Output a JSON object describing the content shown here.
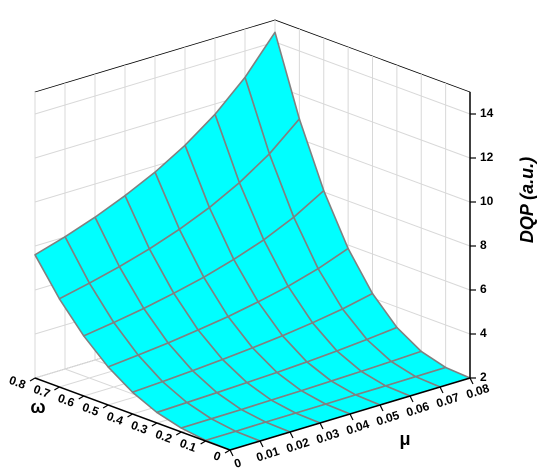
{
  "chart_data": {
    "type": "surface",
    "xlabel": "μ",
    "ylabel": "ω",
    "zlabel": "DQP (a.u.)",
    "x": [
      0,
      0.01,
      0.02,
      0.03,
      0.04,
      0.05,
      0.06,
      0.07,
      0.08
    ],
    "y": [
      0,
      0.1,
      0.2,
      0.3,
      0.4,
      0.5,
      0.6,
      0.7,
      0.8
    ],
    "z": [
      [
        2,
        2,
        2,
        2,
        2,
        2,
        2,
        2,
        2
      ],
      [
        2.03,
        2.03,
        2.04,
        2.04,
        2.04,
        2.05,
        2.05,
        2.06,
        2.07
      ],
      [
        2.18,
        2.19,
        2.2,
        2.22,
        2.24,
        2.27,
        2.3,
        2.34,
        2.39
      ],
      [
        2.48,
        2.52,
        2.56,
        2.61,
        2.66,
        2.73,
        2.82,
        2.93,
        3.07
      ],
      [
        2.99,
        3.06,
        3.15,
        3.25,
        3.37,
        3.51,
        3.69,
        3.91,
        4.2
      ],
      [
        3.73,
        3.86,
        4,
        4.18,
        4.38,
        4.64,
        4.94,
        5.33,
        5.84
      ],
      [
        4.73,
        4.93,
        5.16,
        5.44,
        5.76,
        6.16,
        6.64,
        7.26,
        8.06
      ],
      [
        6.01,
        6.31,
        6.65,
        7.05,
        7.53,
        8.11,
        8.83,
        9.73,
        10.91
      ],
      [
        7.6,
        8.01,
        8.49,
        9.06,
        9.72,
        10.53,
        11.53,
        12.8,
        14.44
      ]
    ],
    "color": "#00ffff",
    "mesh_color": "#808080",
    "xlim": [
      0,
      0.08
    ],
    "ylim": [
      0,
      0.8
    ],
    "zlim": [
      2,
      15
    ],
    "xticks": [
      0,
      0.01,
      0.02,
      0.03,
      0.04,
      0.05,
      0.06,
      0.07,
      0.08
    ],
    "yticks": [
      0,
      0.1,
      0.2,
      0.3,
      0.4,
      0.5,
      0.6,
      0.7,
      0.8
    ],
    "zticks": [
      2,
      4,
      6,
      8,
      10,
      12,
      14
    ],
    "grid": true
  }
}
